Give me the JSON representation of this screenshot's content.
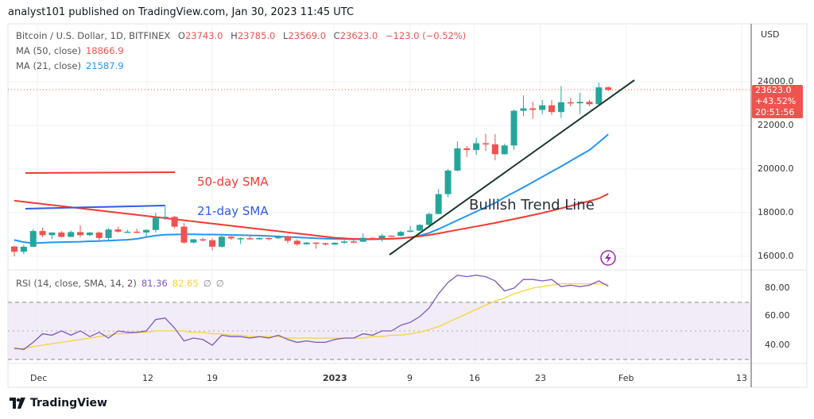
{
  "header": {
    "published": "analyst101 published on TradingView.com, Jan 30, 2023 11:45 UTC"
  },
  "legend": {
    "symbol": "Bitcoin / U.S. Dollar, 1D, BITFINEX",
    "open_label": "O",
    "open": "23743.0",
    "high_label": "H",
    "high": "23785.0",
    "low_label": "L",
    "low": "23569.0",
    "close_label": "C",
    "close": "23623.0",
    "change": "−123.0 (−0.52%)",
    "ma50_label": "MA (50, close)",
    "ma50_value": "18866.9",
    "ma21_label": "MA (21, close)",
    "ma21_value": "21587.9",
    "rsi_label": "RSI (14, close, SMA, 14, 2)",
    "rsi_value": "81.36",
    "rsi_sma_value": "82.65",
    "rsi_na1": "∅",
    "rsi_na2": "∅"
  },
  "price_axis": {
    "currency": "USD",
    "ticks": [
      "24000.0",
      "22000.0",
      "20000.0",
      "18000.0",
      "16000.0"
    ],
    "badge_price": "23623.0",
    "badge_change": "+43.52%",
    "badge_countdown": "20:51:56"
  },
  "rsi_axis": {
    "ticks": [
      "80.00",
      "60.00",
      "40.00"
    ]
  },
  "time_axis": {
    "ticks": [
      "Dec",
      "12",
      "19",
      "2023",
      "9",
      "16",
      "23",
      "Feb",
      "13"
    ]
  },
  "annotations": {
    "sma50_text": "50-day SMA",
    "sma21_text": "21-day SMA",
    "trend_text": "Bullish Trend Line",
    "lightning_icon": "lightning-bolt-icon"
  },
  "footer": {
    "logo_text": "TradingView"
  },
  "colors": {
    "up": "#26a69a",
    "down": "#ef5350",
    "ma21": "#2196f3",
    "ma50": "#f23b30",
    "rsi": "#7e57c2",
    "rsi_sma": "#f3d638",
    "trend": "#1b3a2b"
  },
  "chart_data": {
    "type": "candlestick",
    "title": "Bitcoin / U.S. Dollar, 1D, BITFINEX",
    "ylabel": "USD",
    "ylim": [
      15300,
      25300
    ],
    "grid": true,
    "candle_fields": [
      "date",
      "open",
      "high",
      "low",
      "close"
    ],
    "candles": [
      [
        "Nov 28",
        16450,
        16480,
        16000,
        16210
      ],
      [
        "Nov 29",
        16210,
        16530,
        16100,
        16440
      ],
      [
        "Nov 30",
        16440,
        17250,
        16420,
        17160
      ],
      [
        "Dec 1",
        17160,
        17320,
        16870,
        16970
      ],
      [
        "Dec 2",
        16970,
        17100,
        16790,
        17090
      ],
      [
        "Dec 3",
        17090,
        17160,
        16860,
        16890
      ],
      [
        "Dec 4",
        16890,
        17180,
        16880,
        17110
      ],
      [
        "Dec 5",
        17110,
        17420,
        16880,
        16970
      ],
      [
        "Dec 6",
        16970,
        17110,
        16920,
        17090
      ],
      [
        "Dec 7",
        17090,
        17140,
        16690,
        16840
      ],
      [
        "Dec 8",
        16840,
        17290,
        16740,
        17230
      ],
      [
        "Dec 9",
        17230,
        17360,
        17080,
        17130
      ],
      [
        "Dec 10",
        17130,
        17220,
        17090,
        17130
      ],
      [
        "Dec 11",
        17130,
        17270,
        17070,
        17090
      ],
      [
        "Dec 12",
        17090,
        17240,
        16870,
        17210
      ],
      [
        "Dec 13",
        17210,
        18000,
        17090,
        17780
      ],
      [
        "Dec 14",
        17780,
        18370,
        17670,
        17810
      ],
      [
        "Dec 15",
        17810,
        17850,
        17280,
        17360
      ],
      [
        "Dec 16",
        17360,
        17530,
        16580,
        16630
      ],
      [
        "Dec 17",
        16630,
        16800,
        16590,
        16780
      ],
      [
        "Dec 18",
        16780,
        16850,
        16670,
        16740
      ],
      [
        "Dec 19",
        16740,
        16820,
        16270,
        16440
      ],
      [
        "Dec 20",
        16440,
        16960,
        16400,
        16900
      ],
      [
        "Dec 21",
        16900,
        16920,
        16760,
        16820
      ],
      [
        "Dec 22",
        16820,
        16870,
        16560,
        16830
      ],
      [
        "Dec 23",
        16830,
        16950,
        16770,
        16780
      ],
      [
        "Dec 24",
        16780,
        16870,
        16760,
        16840
      ],
      [
        "Dec 25",
        16840,
        16860,
        16730,
        16830
      ],
      [
        "Dec 26",
        16830,
        16950,
        16800,
        16920
      ],
      [
        "Dec 27",
        16920,
        16960,
        16600,
        16710
      ],
      [
        "Dec 28",
        16710,
        16780,
        16470,
        16550
      ],
      [
        "Dec 29",
        16550,
        16660,
        16530,
        16630
      ],
      [
        "Dec 30",
        16630,
        16640,
        16350,
        16600
      ],
      [
        "Dec 31",
        16600,
        16620,
        16480,
        16540
      ],
      [
        "Jan 1",
        16540,
        16640,
        16520,
        16620
      ],
      [
        "Jan 2",
        16620,
        16770,
        16560,
        16680
      ],
      [
        "Jan 3",
        16680,
        16790,
        16600,
        16670
      ],
      [
        "Jan 4",
        16670,
        17060,
        16650,
        16850
      ],
      [
        "Jan 5",
        16850,
        16880,
        16750,
        16830
      ],
      [
        "Jan 6",
        16830,
        17030,
        16680,
        16950
      ],
      [
        "Jan 7",
        16950,
        16960,
        16910,
        16940
      ],
      [
        "Jan 8",
        16940,
        17170,
        16910,
        17120
      ],
      [
        "Jan 9",
        17120,
        17390,
        17110,
        17180
      ],
      [
        "Jan 10",
        17180,
        17480,
        17150,
        17440
      ],
      [
        "Jan 11",
        17440,
        18000,
        17320,
        17940
      ],
      [
        "Jan 12",
        17940,
        19090,
        17920,
        18850
      ],
      [
        "Jan 13",
        18850,
        20000,
        18710,
        19930
      ],
      [
        "Jan 14",
        19930,
        21260,
        19890,
        20950
      ],
      [
        "Jan 15",
        20950,
        21050,
        20550,
        20870
      ],
      [
        "Jan 16",
        20870,
        21430,
        20650,
        21180
      ],
      [
        "Jan 17",
        21180,
        21620,
        20830,
        21130
      ],
      [
        "Jan 18",
        21130,
        21600,
        20400,
        20680
      ],
      [
        "Jan 19",
        20680,
        21160,
        20660,
        21080
      ],
      [
        "Jan 20",
        21080,
        22720,
        20880,
        22670
      ],
      [
        "Jan 21",
        22670,
        23370,
        22420,
        22780
      ],
      [
        "Jan 22",
        22780,
        23080,
        22300,
        22710
      ],
      [
        "Jan 23",
        22710,
        23160,
        22520,
        22920
      ],
      [
        "Jan 24",
        22920,
        23170,
        22480,
        22610
      ],
      [
        "Jan 25",
        22610,
        23800,
        22340,
        23060
      ],
      [
        "Jan 26",
        23060,
        23260,
        22870,
        23010
      ],
      [
        "Jan 27",
        23010,
        23500,
        22520,
        23080
      ],
      [
        "Jan 28",
        23080,
        23170,
        22880,
        22970
      ],
      [
        "Jan 29",
        22970,
        23960,
        22950,
        23740
      ],
      [
        "Jan 30",
        23743,
        23785,
        23569,
        23623
      ]
    ],
    "series": [
      {
        "name": "MA (21, close)",
        "values": [
          16750,
          16650,
          16600,
          16620,
          16640,
          16650,
          16660,
          16670,
          16690,
          16700,
          16720,
          16740,
          16760,
          16800,
          16880,
          16950,
          16990,
          17000,
          17010,
          17010,
          17000,
          17000,
          16990,
          16980,
          16970,
          16960,
          16950,
          16930,
          16910,
          16890,
          16870,
          16850,
          16830,
          16810,
          16800,
          16790,
          16780,
          16780,
          16780,
          16790,
          16800,
          16830,
          16870,
          16950,
          17070,
          17250,
          17450,
          17650,
          17850,
          18050,
          18250,
          18450,
          18700,
          18930,
          19160,
          19400,
          19640,
          19880,
          20120,
          20370,
          20620,
          20870,
          21220,
          21587.9
        ]
      },
      {
        "name": "MA (50, close)",
        "values": [
          18550,
          18500,
          18450,
          18400,
          18350,
          18300,
          18250,
          18200,
          18150,
          18100,
          18050,
          18000,
          17950,
          17900,
          17850,
          17800,
          17750,
          17700,
          17650,
          17600,
          17550,
          17500,
          17450,
          17400,
          17350,
          17300,
          17250,
          17200,
          17150,
          17100,
          17050,
          17000,
          16950,
          16900,
          16850,
          16820,
          16800,
          16790,
          16790,
          16800,
          16810,
          16830,
          16870,
          16920,
          16980,
          17050,
          17130,
          17210,
          17290,
          17370,
          17450,
          17530,
          17620,
          17710,
          17800,
          17890,
          17990,
          18090,
          18200,
          18310,
          18420,
          18530,
          18650,
          18866.9
        ]
      }
    ],
    "rsi": {
      "label": "RSI (14, close, SMA, 14, 2)",
      "ylim": [
        25,
        95
      ],
      "bands": [
        70,
        50,
        30
      ],
      "values": [
        38,
        37,
        42,
        48,
        47,
        50,
        47,
        50,
        46,
        49,
        45,
        50,
        49,
        49,
        50,
        58,
        59,
        52,
        43,
        45,
        44,
        40,
        47,
        46,
        46,
        45,
        46,
        45,
        47,
        44,
        42,
        43,
        42,
        42,
        44,
        45,
        45,
        48,
        47,
        50,
        50,
        54,
        56,
        60,
        66,
        76,
        84,
        89,
        88,
        89,
        88,
        85,
        78,
        80,
        86,
        86,
        85,
        86,
        81,
        82,
        81,
        82,
        85,
        81.36
      ],
      "sma_values": [
        37,
        38,
        39,
        40,
        41,
        42,
        43,
        44,
        45,
        46,
        47,
        48,
        48,
        49,
        49,
        50,
        50,
        50,
        50,
        49,
        49,
        48,
        48,
        47,
        47,
        46,
        46,
        46,
        46,
        45,
        45,
        45,
        45,
        45,
        45,
        45,
        45,
        45,
        46,
        46,
        47,
        47,
        48,
        49,
        51,
        53,
        56,
        59,
        62,
        65,
        68,
        71,
        73,
        76,
        78,
        80,
        81,
        82,
        83,
        83,
        83,
        83,
        83,
        82.65
      ]
    },
    "drawings": [
      {
        "type": "horizontal_segment",
        "label": "50-day SMA",
        "price": 19830
      },
      {
        "type": "horizontal_segment",
        "label": "21-day SMA",
        "price": 18250
      },
      {
        "type": "trend_line",
        "label": "Bullish Trend Line",
        "from": [
          "Jan 7",
          16000
        ],
        "to": [
          "Feb 1",
          24000
        ]
      }
    ]
  }
}
